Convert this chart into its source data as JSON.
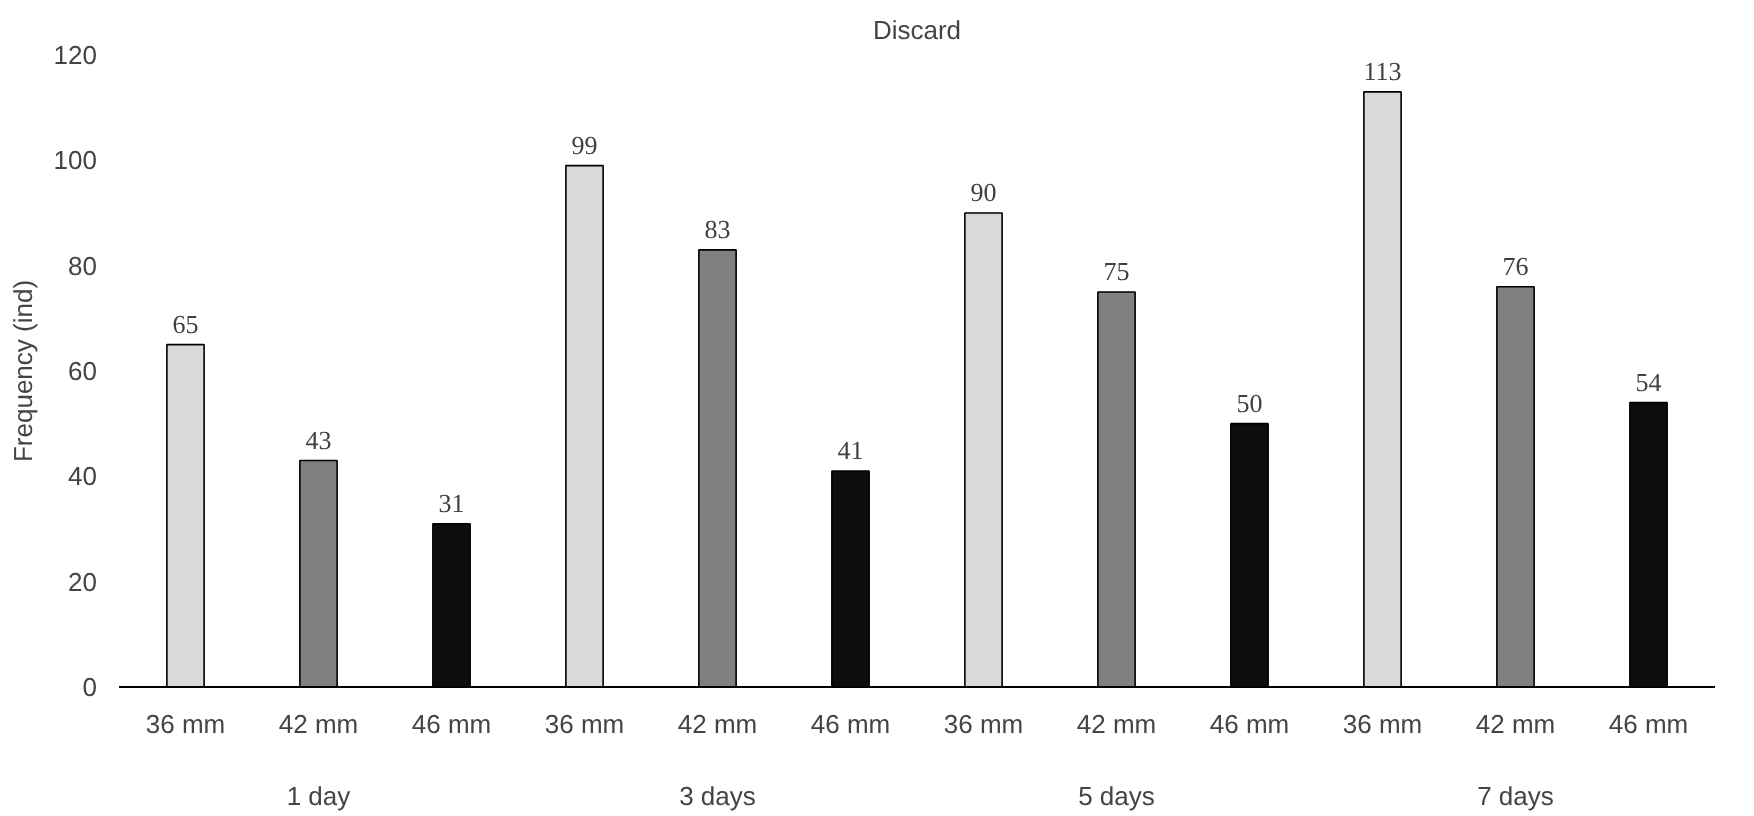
{
  "chart_data": {
    "type": "bar",
    "title": "Discard",
    "ylabel": "Frequency (ind)",
    "categories": [
      "1 day",
      "3 days",
      "5 days",
      "7 days"
    ],
    "series": [
      {
        "name": "36 mm",
        "color": "#d9d9d9",
        "values": [
          65,
          99,
          90,
          113
        ]
      },
      {
        "name": "42 mm",
        "color": "#808080",
        "values": [
          43,
          83,
          75,
          76
        ]
      },
      {
        "name": "46 mm",
        "color": "#0d0d0d",
        "values": [
          31,
          41,
          50,
          54
        ]
      }
    ],
    "ylim": [
      0,
      120
    ],
    "yticks": [
      0,
      20,
      40,
      60,
      80,
      100,
      120
    ],
    "data_labels": true,
    "grid": false
  }
}
